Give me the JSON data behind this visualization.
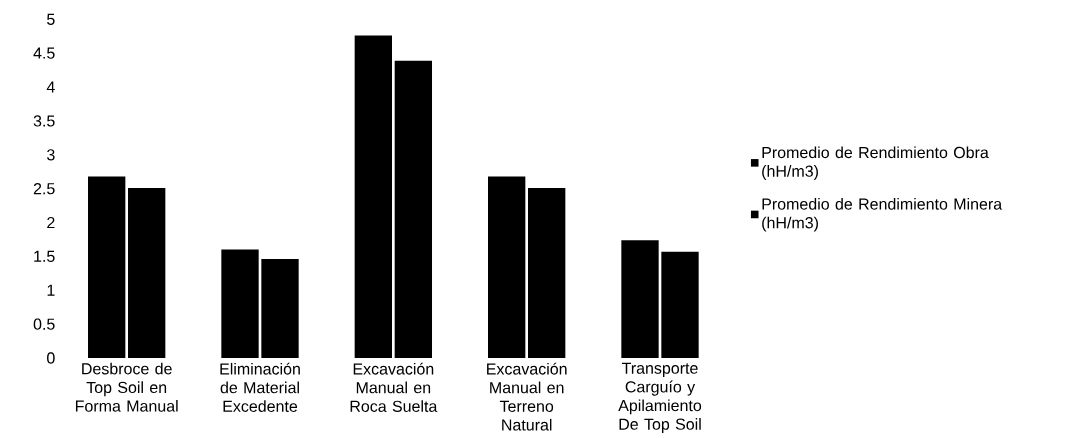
{
  "chart_data": {
    "type": "bar",
    "categories": [
      "Desbroce de Top Soil en Forma Manual",
      "Eliminación de Material Excedente",
      "Excavación Manual en Roca Suelta",
      "Excavación Manual en Terreno Natural",
      "Transporte Carguío y Apilamiento De Top Soil"
    ],
    "series": [
      {
        "name": "Promedio de Rendimiento Obra (hH/m3)",
        "color": "#000000",
        "values": [
          2.68,
          1.6,
          4.76,
          2.68,
          1.74
        ]
      },
      {
        "name": "Promedio de Rendimiento Minera (hH/m3)",
        "color": "#000000",
        "values": [
          2.51,
          1.46,
          4.39,
          2.51,
          1.57
        ]
      }
    ],
    "ylim": [
      0,
      5
    ],
    "yticks": [
      0,
      0.5,
      1,
      1.5,
      2,
      2.5,
      3,
      3.5,
      4,
      4.5,
      5
    ],
    "grid": false,
    "legend": "right"
  }
}
